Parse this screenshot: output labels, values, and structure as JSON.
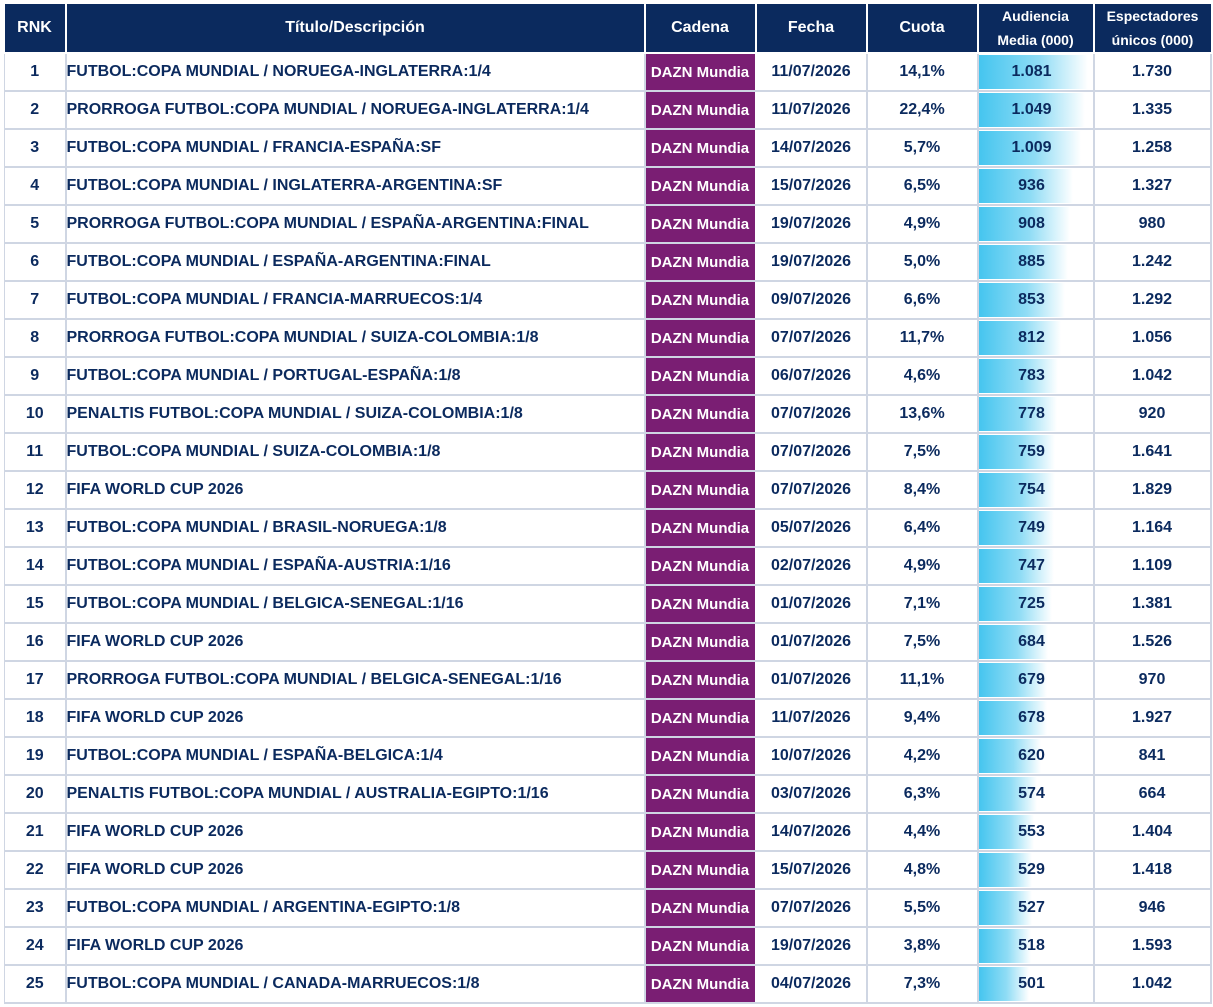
{
  "colors": {
    "header_bg": "#0b2a5e",
    "channel_bg": "#7a1e73",
    "text": "#0b2a5e",
    "bar_start": "#45c5ef"
  },
  "headers": {
    "rank": "RNK",
    "title": "Título/Descripción",
    "channel": "Cadena",
    "date": "Fecha",
    "share": "Cuota",
    "audience_line1": "Audiencia",
    "audience_line2": "Media (000)",
    "viewers_line1": "Espectadores",
    "viewers_line2": "únicos (000)"
  },
  "chart_data": {
    "type": "table",
    "bar_column": "Audiencia Media (000)",
    "bar_max": 1081,
    "columns": [
      "RNK",
      "Título/Descripción",
      "Cadena",
      "Fecha",
      "Cuota",
      "Audiencia Media (000)",
      "Espectadores únicos (000)"
    ],
    "rows": [
      {
        "rank": "1",
        "title": "FUTBOL:COPA MUNDIAL / NORUEGA-INGLATERRA:1/4",
        "channel": "DAZN Mundia",
        "date": "11/07/2026",
        "share": "14,1%",
        "audience": "1.081",
        "audience_value": 1081,
        "viewers": "1.730"
      },
      {
        "rank": "2",
        "title": "PRORROGA FUTBOL:COPA MUNDIAL / NORUEGA-INGLATERRA:1/4",
        "channel": "DAZN Mundia",
        "date": "11/07/2026",
        "share": "22,4%",
        "audience": "1.049",
        "audience_value": 1049,
        "viewers": "1.335"
      },
      {
        "rank": "3",
        "title": "FUTBOL:COPA MUNDIAL / FRANCIA-ESPAÑA:SF",
        "channel": "DAZN Mundia",
        "date": "14/07/2026",
        "share": "5,7%",
        "audience": "1.009",
        "audience_value": 1009,
        "viewers": "1.258"
      },
      {
        "rank": "4",
        "title": "FUTBOL:COPA MUNDIAL / INGLATERRA-ARGENTINA:SF",
        "channel": "DAZN Mundia",
        "date": "15/07/2026",
        "share": "6,5%",
        "audience": "936",
        "audience_value": 936,
        "viewers": "1.327"
      },
      {
        "rank": "5",
        "title": "PRORROGA FUTBOL:COPA MUNDIAL / ESPAÑA-ARGENTINA:FINAL",
        "channel": "DAZN Mundia",
        "date": "19/07/2026",
        "share": "4,9%",
        "audience": "908",
        "audience_value": 908,
        "viewers": "980"
      },
      {
        "rank": "6",
        "title": "FUTBOL:COPA MUNDIAL / ESPAÑA-ARGENTINA:FINAL",
        "channel": "DAZN Mundia",
        "date": "19/07/2026",
        "share": "5,0%",
        "audience": "885",
        "audience_value": 885,
        "viewers": "1.242"
      },
      {
        "rank": "7",
        "title": "FUTBOL:COPA MUNDIAL / FRANCIA-MARRUECOS:1/4",
        "channel": "DAZN Mundia",
        "date": "09/07/2026",
        "share": "6,6%",
        "audience": "853",
        "audience_value": 853,
        "viewers": "1.292"
      },
      {
        "rank": "8",
        "title": "PRORROGA FUTBOL:COPA MUNDIAL / SUIZA-COLOMBIA:1/8",
        "channel": "DAZN Mundia",
        "date": "07/07/2026",
        "share": "11,7%",
        "audience": "812",
        "audience_value": 812,
        "viewers": "1.056"
      },
      {
        "rank": "9",
        "title": "FUTBOL:COPA MUNDIAL / PORTUGAL-ESPAÑA:1/8",
        "channel": "DAZN Mundia",
        "date": "06/07/2026",
        "share": "4,6%",
        "audience": "783",
        "audience_value": 783,
        "viewers": "1.042"
      },
      {
        "rank": "10",
        "title": "PENALTIS FUTBOL:COPA MUNDIAL / SUIZA-COLOMBIA:1/8",
        "channel": "DAZN Mundia",
        "date": "07/07/2026",
        "share": "13,6%",
        "audience": "778",
        "audience_value": 778,
        "viewers": "920"
      },
      {
        "rank": "11",
        "title": "FUTBOL:COPA MUNDIAL / SUIZA-COLOMBIA:1/8",
        "channel": "DAZN Mundia",
        "date": "07/07/2026",
        "share": "7,5%",
        "audience": "759",
        "audience_value": 759,
        "viewers": "1.641"
      },
      {
        "rank": "12",
        "title": "FIFA WORLD CUP 2026",
        "channel": "DAZN Mundia",
        "date": "07/07/2026",
        "share": "8,4%",
        "audience": "754",
        "audience_value": 754,
        "viewers": "1.829"
      },
      {
        "rank": "13",
        "title": "FUTBOL:COPA MUNDIAL / BRASIL-NORUEGA:1/8",
        "channel": "DAZN Mundia",
        "date": "05/07/2026",
        "share": "6,4%",
        "audience": "749",
        "audience_value": 749,
        "viewers": "1.164"
      },
      {
        "rank": "14",
        "title": "FUTBOL:COPA MUNDIAL / ESPAÑA-AUSTRIA:1/16",
        "channel": "DAZN Mundia",
        "date": "02/07/2026",
        "share": "4,9%",
        "audience": "747",
        "audience_value": 747,
        "viewers": "1.109"
      },
      {
        "rank": "15",
        "title": "FUTBOL:COPA MUNDIAL / BELGICA-SENEGAL:1/16",
        "channel": "DAZN Mundia",
        "date": "01/07/2026",
        "share": "7,1%",
        "audience": "725",
        "audience_value": 725,
        "viewers": "1.381"
      },
      {
        "rank": "16",
        "title": "FIFA WORLD CUP 2026",
        "channel": "DAZN Mundia",
        "date": "01/07/2026",
        "share": "7,5%",
        "audience": "684",
        "audience_value": 684,
        "viewers": "1.526"
      },
      {
        "rank": "17",
        "title": "PRORROGA FUTBOL:COPA MUNDIAL / BELGICA-SENEGAL:1/16",
        "channel": "DAZN Mundia",
        "date": "01/07/2026",
        "share": "11,1%",
        "audience": "679",
        "audience_value": 679,
        "viewers": "970"
      },
      {
        "rank": "18",
        "title": "FIFA WORLD CUP 2026",
        "channel": "DAZN Mundia",
        "date": "11/07/2026",
        "share": "9,4%",
        "audience": "678",
        "audience_value": 678,
        "viewers": "1.927"
      },
      {
        "rank": "19",
        "title": "FUTBOL:COPA MUNDIAL / ESPAÑA-BELGICA:1/4",
        "channel": "DAZN Mundia",
        "date": "10/07/2026",
        "share": "4,2%",
        "audience": "620",
        "audience_value": 620,
        "viewers": "841"
      },
      {
        "rank": "20",
        "title": "PENALTIS FUTBOL:COPA MUNDIAL / AUSTRALIA-EGIPTO:1/16",
        "channel": "DAZN Mundia",
        "date": "03/07/2026",
        "share": "6,3%",
        "audience": "574",
        "audience_value": 574,
        "viewers": "664"
      },
      {
        "rank": "21",
        "title": "FIFA WORLD CUP 2026",
        "channel": "DAZN Mundia",
        "date": "14/07/2026",
        "share": "4,4%",
        "audience": "553",
        "audience_value": 553,
        "viewers": "1.404"
      },
      {
        "rank": "22",
        "title": "FIFA WORLD CUP 2026",
        "channel": "DAZN Mundia",
        "date": "15/07/2026",
        "share": "4,8%",
        "audience": "529",
        "audience_value": 529,
        "viewers": "1.418"
      },
      {
        "rank": "23",
        "title": "FUTBOL:COPA MUNDIAL / ARGENTINA-EGIPTO:1/8",
        "channel": "DAZN Mundia",
        "date": "07/07/2026",
        "share": "5,5%",
        "audience": "527",
        "audience_value": 527,
        "viewers": "946"
      },
      {
        "rank": "24",
        "title": "FIFA WORLD CUP 2026",
        "channel": "DAZN Mundia",
        "date": "19/07/2026",
        "share": "3,8%",
        "audience": "518",
        "audience_value": 518,
        "viewers": "1.593"
      },
      {
        "rank": "25",
        "title": "FUTBOL:COPA MUNDIAL / CANADA-MARRUECOS:1/8",
        "channel": "DAZN Mundia",
        "date": "04/07/2026",
        "share": "7,3%",
        "audience": "501",
        "audience_value": 501,
        "viewers": "1.042"
      }
    ]
  }
}
